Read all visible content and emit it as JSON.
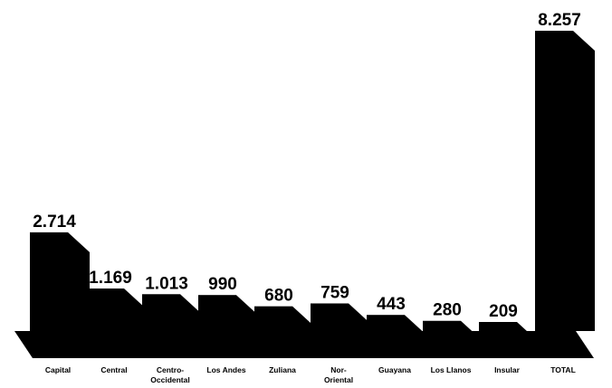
{
  "chart_data": {
    "type": "bar",
    "title": "",
    "xlabel": "",
    "ylabel": "",
    "categories": [
      [
        "Capital"
      ],
      [
        "Central"
      ],
      [
        "Centro-",
        "Occidental"
      ],
      [
        "Los Andes"
      ],
      [
        "Zuliana"
      ],
      [
        "Nor-",
        "Oriental"
      ],
      [
        "Guayana"
      ],
      [
        "Los Llanos"
      ],
      [
        "Insular"
      ],
      [
        "TOTAL"
      ]
    ],
    "values": [
      2714,
      1169,
      1013,
      990,
      680,
      759,
      443,
      280,
      209,
      8257
    ],
    "value_labels": [
      "2.714",
      "1.169",
      "1.013",
      "990",
      "680",
      "759",
      "443",
      "280",
      "209",
      "8.257"
    ],
    "ylim": [
      0,
      8257
    ],
    "grid": false,
    "legend": "none",
    "colors": {
      "bar": "#000000",
      "background": "#ffffff"
    }
  }
}
